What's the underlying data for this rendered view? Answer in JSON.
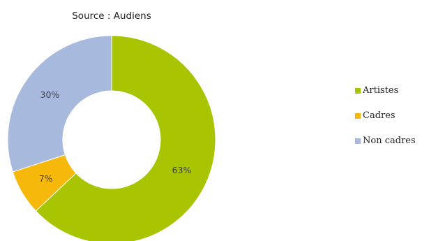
{
  "chart_data": {
    "type": "pie",
    "title": "Source : Audiens",
    "categories": [
      "Artistes",
      "Cadres",
      "Non cadres"
    ],
    "values": [
      63,
      7,
      30
    ],
    "data_labels": [
      "63%",
      "7%",
      "30%"
    ],
    "colors": [
      "#a9c400",
      "#f6b80b",
      "#a7b9dd"
    ],
    "donut": true,
    "legend_position": "right"
  }
}
